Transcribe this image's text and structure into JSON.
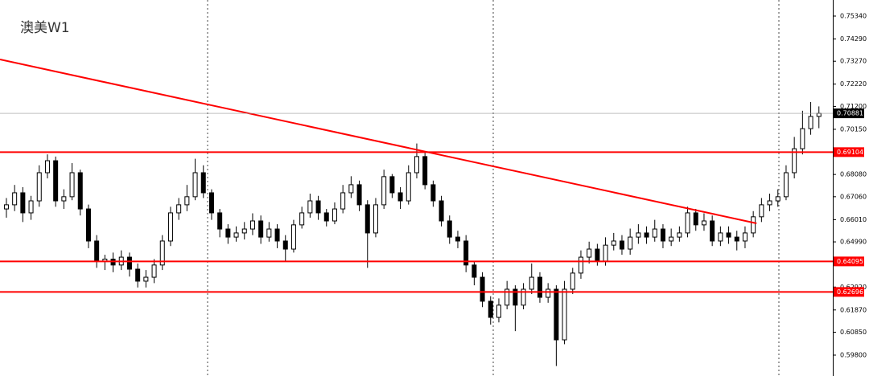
{
  "chart_data": {
    "type": "candlestick",
    "title": "澳美W1",
    "ohlc": [
      [
        0.665,
        0.67,
        0.661,
        0.6669
      ],
      [
        0.6669,
        0.676,
        0.664,
        0.6724
      ],
      [
        0.6724,
        0.675,
        0.659,
        0.6632
      ],
      [
        0.6632,
        0.671,
        0.66,
        0.6687
      ],
      [
        0.6687,
        0.685,
        0.666,
        0.6816
      ],
      [
        0.6816,
        0.69,
        0.679,
        0.6871
      ],
      [
        0.6871,
        0.689,
        0.666,
        0.6687
      ],
      [
        0.6687,
        0.674,
        0.665,
        0.6706
      ],
      [
        0.6706,
        0.686,
        0.669,
        0.6816
      ],
      [
        0.6816,
        0.683,
        0.662,
        0.665
      ],
      [
        0.665,
        0.667,
        0.647,
        0.6503
      ],
      [
        0.6503,
        0.653,
        0.638,
        0.6411
      ],
      [
        0.6411,
        0.644,
        0.637,
        0.642
      ],
      [
        0.642,
        0.645,
        0.636,
        0.6393
      ],
      [
        0.6393,
        0.646,
        0.637,
        0.6429
      ],
      [
        0.6429,
        0.645,
        0.634,
        0.6374
      ],
      [
        0.6374,
        0.64,
        0.629,
        0.6319
      ],
      [
        0.6319,
        0.637,
        0.629,
        0.6337
      ],
      [
        0.6337,
        0.642,
        0.631,
        0.6393
      ],
      [
        0.6393,
        0.653,
        0.637,
        0.6503
      ],
      [
        0.6503,
        0.666,
        0.648,
        0.6632
      ],
      [
        0.6632,
        0.67,
        0.66,
        0.6669
      ],
      [
        0.6669,
        0.676,
        0.664,
        0.6706
      ],
      [
        0.6706,
        0.688,
        0.669,
        0.6816
      ],
      [
        0.6816,
        0.685,
        0.67,
        0.6724
      ],
      [
        0.6724,
        0.674,
        0.66,
        0.6632
      ],
      [
        0.6632,
        0.665,
        0.652,
        0.6558
      ],
      [
        0.6558,
        0.658,
        0.649,
        0.6521
      ],
      [
        0.6521,
        0.657,
        0.65,
        0.654
      ],
      [
        0.654,
        0.659,
        0.651,
        0.6558
      ],
      [
        0.6558,
        0.663,
        0.653,
        0.6595
      ],
      [
        0.6595,
        0.662,
        0.649,
        0.6521
      ],
      [
        0.6521,
        0.659,
        0.65,
        0.6558
      ],
      [
        0.6558,
        0.658,
        0.647,
        0.6503
      ],
      [
        0.6503,
        0.653,
        0.641,
        0.6466
      ],
      [
        0.6466,
        0.66,
        0.645,
        0.6577
      ],
      [
        0.6577,
        0.666,
        0.656,
        0.6632
      ],
      [
        0.6632,
        0.672,
        0.661,
        0.6687
      ],
      [
        0.6687,
        0.671,
        0.66,
        0.6632
      ],
      [
        0.6632,
        0.665,
        0.657,
        0.6595
      ],
      [
        0.6595,
        0.668,
        0.658,
        0.665
      ],
      [
        0.665,
        0.676,
        0.663,
        0.6724
      ],
      [
        0.6724,
        0.68,
        0.67,
        0.6761
      ],
      [
        0.6761,
        0.678,
        0.664,
        0.6669
      ],
      [
        0.6669,
        0.669,
        0.638,
        0.654
      ],
      [
        0.654,
        0.67,
        0.652,
        0.6669
      ],
      [
        0.6669,
        0.683,
        0.665,
        0.6798
      ],
      [
        0.6798,
        0.681,
        0.67,
        0.6724
      ],
      [
        0.6724,
        0.675,
        0.665,
        0.6687
      ],
      [
        0.6687,
        0.685,
        0.667,
        0.6816
      ],
      [
        0.6816,
        0.695,
        0.679,
        0.689
      ],
      [
        0.689,
        0.691,
        0.674,
        0.6761
      ],
      [
        0.6761,
        0.678,
        0.666,
        0.6687
      ],
      [
        0.6687,
        0.671,
        0.657,
        0.6595
      ],
      [
        0.6595,
        0.662,
        0.649,
        0.6521
      ],
      [
        0.6521,
        0.655,
        0.647,
        0.6503
      ],
      [
        0.6503,
        0.653,
        0.636,
        0.6393
      ],
      [
        0.6393,
        0.641,
        0.63,
        0.6337
      ],
      [
        0.6337,
        0.636,
        0.62,
        0.6227
      ],
      [
        0.6227,
        0.625,
        0.612,
        0.6153
      ],
      [
        0.6153,
        0.624,
        0.613,
        0.6209
      ],
      [
        0.6209,
        0.632,
        0.619,
        0.6282
      ],
      [
        0.6282,
        0.63,
        0.609,
        0.6209
      ],
      [
        0.6209,
        0.631,
        0.619,
        0.6282
      ],
      [
        0.6282,
        0.64,
        0.626,
        0.6337
      ],
      [
        0.6337,
        0.636,
        0.622,
        0.6245
      ],
      [
        0.6245,
        0.631,
        0.622,
        0.6282
      ],
      [
        0.6282,
        0.63,
        0.593,
        0.605
      ],
      [
        0.605,
        0.632,
        0.603,
        0.6282
      ],
      [
        0.6282,
        0.638,
        0.626,
        0.6356
      ],
      [
        0.6356,
        0.646,
        0.633,
        0.6429
      ],
      [
        0.6429,
        0.65,
        0.64,
        0.6466
      ],
      [
        0.6466,
        0.649,
        0.639,
        0.6411
      ],
      [
        0.6411,
        0.652,
        0.639,
        0.6484
      ],
      [
        0.6484,
        0.654,
        0.646,
        0.6503
      ],
      [
        0.6503,
        0.653,
        0.644,
        0.6466
      ],
      [
        0.6466,
        0.656,
        0.644,
        0.6521
      ],
      [
        0.6521,
        0.658,
        0.649,
        0.654
      ],
      [
        0.654,
        0.657,
        0.649,
        0.6521
      ],
      [
        0.6521,
        0.66,
        0.65,
        0.6558
      ],
      [
        0.6558,
        0.658,
        0.647,
        0.6503
      ],
      [
        0.6503,
        0.656,
        0.648,
        0.6521
      ],
      [
        0.6521,
        0.657,
        0.65,
        0.654
      ],
      [
        0.654,
        0.666,
        0.652,
        0.6632
      ],
      [
        0.6632,
        0.665,
        0.655,
        0.6577
      ],
      [
        0.6577,
        0.663,
        0.655,
        0.6595
      ],
      [
        0.6595,
        0.662,
        0.648,
        0.6503
      ],
      [
        0.6503,
        0.657,
        0.648,
        0.654
      ],
      [
        0.654,
        0.657,
        0.649,
        0.6521
      ],
      [
        0.6521,
        0.655,
        0.646,
        0.6503
      ],
      [
        0.6503,
        0.657,
        0.647,
        0.654
      ],
      [
        0.654,
        0.664,
        0.652,
        0.6614
      ],
      [
        0.6614,
        0.67,
        0.659,
        0.6669
      ],
      [
        0.6669,
        0.672,
        0.664,
        0.6687
      ],
      [
        0.6687,
        0.674,
        0.666,
        0.6706
      ],
      [
        0.6706,
        0.685,
        0.669,
        0.6816
      ],
      [
        0.6816,
        0.698,
        0.679,
        0.6926
      ],
      [
        0.6926,
        0.71,
        0.69,
        0.7018
      ],
      [
        0.7018,
        0.714,
        0.699,
        0.7074
      ],
      [
        0.7074,
        0.712,
        0.702,
        0.70881
      ]
    ],
    "xlim": [
      -0.78,
      100.69
    ],
    "ylim": [
      0.58843,
      0.76076
    ],
    "yticks": [
      {
        "value": 0.7534,
        "label": "0.75340"
      },
      {
        "value": 0.7429,
        "label": "0.74290"
      },
      {
        "value": 0.7327,
        "label": "0.73270"
      },
      {
        "value": 0.7222,
        "label": "0.72220"
      },
      {
        "value": 0.712,
        "label": "0.71200"
      },
      {
        "value": 0.7015,
        "label": "0.70150"
      },
      {
        "value": 0.6808,
        "label": "0.68080"
      },
      {
        "value": 0.6706,
        "label": "0.67060"
      },
      {
        "value": 0.6601,
        "label": "0.66010"
      },
      {
        "value": 0.6499,
        "label": "0.64990"
      },
      {
        "value": 0.6292,
        "label": "0.62920"
      },
      {
        "value": 0.6187,
        "label": "0.61870"
      },
      {
        "value": 0.6085,
        "label": "0.60850"
      },
      {
        "value": 0.598,
        "label": "0.59800"
      }
    ],
    "levels": [
      0.69104,
      0.64095,
      0.62696
    ],
    "level_color": "#ff0000",
    "current_price": 0.70881,
    "trendline": {
      "start": [
        -0.78,
        0.7335
      ],
      "end": [
        91.4,
        0.6584
      ],
      "color": "#ff0000"
    }
  }
}
